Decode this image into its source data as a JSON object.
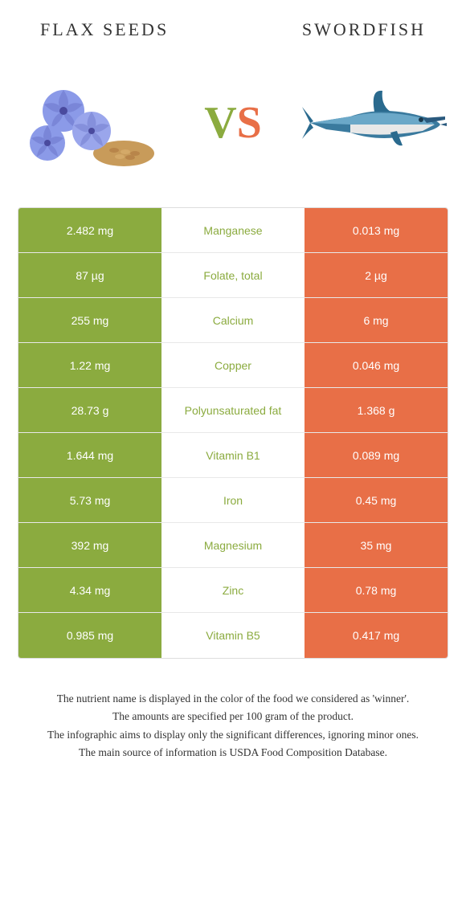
{
  "food_left": {
    "name": "FLAX SEEDS",
    "color": "#8bab3f"
  },
  "food_right": {
    "name": "SWORDFISH",
    "color": "#e86f47"
  },
  "vs": {
    "v": "V",
    "s": "S"
  },
  "rows": [
    {
      "left": "2.482 mg",
      "label": "Manganese",
      "right": "0.013 mg",
      "winner": "left"
    },
    {
      "left": "87 µg",
      "label": "Folate, total",
      "right": "2 µg",
      "winner": "left"
    },
    {
      "left": "255 mg",
      "label": "Calcium",
      "right": "6 mg",
      "winner": "left"
    },
    {
      "left": "1.22 mg",
      "label": "Copper",
      "right": "0.046 mg",
      "winner": "left"
    },
    {
      "left": "28.73 g",
      "label": "Polyunsaturated fat",
      "right": "1.368 g",
      "winner": "left"
    },
    {
      "left": "1.644 mg",
      "label": "Vitamin B1",
      "right": "0.089 mg",
      "winner": "left"
    },
    {
      "left": "5.73 mg",
      "label": "Iron",
      "right": "0.45 mg",
      "winner": "left"
    },
    {
      "left": "392 mg",
      "label": "Magnesium",
      "right": "35 mg",
      "winner": "left"
    },
    {
      "left": "4.34 mg",
      "label": "Zinc",
      "right": "0.78 mg",
      "winner": "left"
    },
    {
      "left": "0.985 mg",
      "label": "Vitamin B5",
      "right": "0.417 mg",
      "winner": "left"
    }
  ],
  "footer": {
    "line1": "The nutrient name is displayed in the color of the food we considered as 'winner'.",
    "line2": "The amounts are specified per 100 gram of the product.",
    "line3": "The infographic aims to display only the significant differences, ignoring minor ones.",
    "line4": "The main source of information is USDA Food Composition Database."
  },
  "style": {
    "left_bg": "#8bab3f",
    "right_bg": "#e86f47",
    "mid_bg": "#ffffff",
    "row_border": "#e8e8e8"
  }
}
